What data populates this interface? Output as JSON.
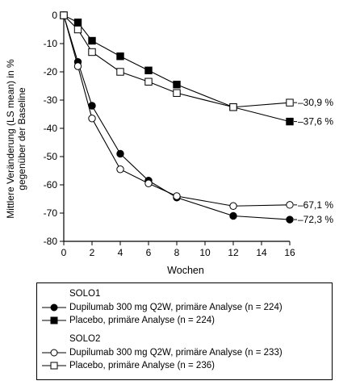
{
  "chart_data": {
    "type": "line",
    "xlabel": "Wochen",
    "ylabel_lines": [
      "Mittlere Veränderung (LS mean) in %",
      "gegenüber der Baseline"
    ],
    "xlim": [
      0,
      16
    ],
    "ylim": [
      -80,
      0
    ],
    "x_ticks": [
      0,
      2,
      4,
      6,
      8,
      10,
      12,
      14,
      16
    ],
    "y_ticks": [
      0,
      -10,
      -20,
      -30,
      -40,
      -50,
      -60,
      -70,
      -80
    ],
    "x_tick_labels": [
      "0",
      "2",
      "4",
      "6",
      "8",
      "10",
      "12",
      "14",
      "16"
    ],
    "y_tick_labels": [
      "0",
      "-10",
      "-20",
      "-30",
      "-40",
      "-50",
      "-60",
      "-70",
      "-80"
    ],
    "grid": false,
    "legend_position": "bottom",
    "series": [
      {
        "study": "SOLO1",
        "name": "Dupilumab 300 mg Q2W, primäre Analyse (n = 224)",
        "marker": "filled-circle",
        "x": [
          0,
          1,
          2,
          4,
          6,
          8,
          12,
          16
        ],
        "values": [
          0,
          -16.5,
          -32,
          -49,
          -58.5,
          -64.5,
          -71,
          -72.3
        ],
        "end_label": "–72,3 %"
      },
      {
        "study": "SOLO1",
        "name": "Placebo, primäre Analyse (n = 224)",
        "marker": "filled-square",
        "x": [
          0,
          1,
          2,
          4,
          6,
          8,
          12,
          16
        ],
        "values": [
          0,
          -2.5,
          -9,
          -14.5,
          -19.5,
          -24.5,
          -32.5,
          -37.6
        ],
        "end_label": "–37,6 %"
      },
      {
        "study": "SOLO2",
        "name": "Dupilumab 300 mg Q2W, primäre Analyse (n = 233)",
        "marker": "open-circle",
        "x": [
          0,
          1,
          2,
          4,
          6,
          8,
          12,
          16
        ],
        "values": [
          0,
          -18,
          -36.5,
          -54.5,
          -59.5,
          -64,
          -67.5,
          -67.1
        ],
        "end_label": "–67,1 %"
      },
      {
        "study": "SOLO2",
        "name": "Placebo, primäre Analyse (n = 236)",
        "marker": "open-square",
        "x": [
          0,
          1,
          2,
          4,
          6,
          8,
          12,
          16
        ],
        "values": [
          0,
          -5,
          -13,
          -20,
          -23.5,
          -27.5,
          -32.5,
          -30.9
        ],
        "end_label": "–30,9 %"
      }
    ]
  },
  "legend": {
    "groups": [
      {
        "title": "SOLO1",
        "items": [
          {
            "label": "Dupilumab 300 mg Q2W, primäre Analyse (n = 224)",
            "marker": "filled-circle"
          },
          {
            "label": "Placebo, primäre Analyse (n = 224)",
            "marker": "filled-square"
          }
        ]
      },
      {
        "title": "SOLO2",
        "items": [
          {
            "label": "Dupilumab 300 mg Q2W, primäre Analyse (n = 233)",
            "marker": "open-circle"
          },
          {
            "label": "Placebo, primäre Analyse (n = 236)",
            "marker": "open-square"
          }
        ]
      }
    ]
  }
}
